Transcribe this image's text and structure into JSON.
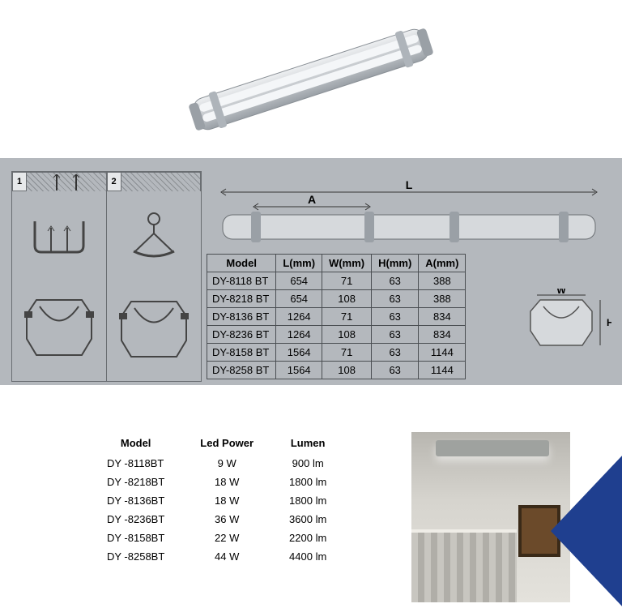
{
  "colors": {
    "panel_bg": "#b4b8bd",
    "border": "#6a6e72",
    "accent_blue": "#1f3f8f"
  },
  "mounting": {
    "step1": "1",
    "step2": "2"
  },
  "dim_table": {
    "headers": [
      "Model",
      "L(mm)",
      "W(mm)",
      "H(mm)",
      "A(mm)"
    ],
    "rows": [
      [
        "DY-8118 BT",
        "654",
        "71",
        "63",
        "388"
      ],
      [
        "DY-8218 BT",
        "654",
        "108",
        "63",
        "388"
      ],
      [
        "DY-8136 BT",
        "1264",
        "71",
        "63",
        "834"
      ],
      [
        "DY-8236 BT",
        "1264",
        "108",
        "63",
        "834"
      ],
      [
        "DY-8158 BT",
        "1564",
        "71",
        "63",
        "1144"
      ],
      [
        "DY-8258 BT",
        "1564",
        "108",
        "63",
        "1144"
      ]
    ],
    "dim_labels": {
      "L": "L",
      "A": "A",
      "W": "W",
      "H": "H"
    }
  },
  "power_table": {
    "headers": [
      "Model",
      "Led Power",
      "Lumen"
    ],
    "rows": [
      [
        "DY -8118BT",
        "9 W",
        "900 lm"
      ],
      [
        "DY -8218BT",
        "18 W",
        "1800 lm"
      ],
      [
        "DY -8136BT",
        "18 W",
        "1800 lm"
      ],
      [
        "DY -8236BT",
        "36 W",
        "3600 lm"
      ],
      [
        "DY -8158BT",
        "22 W",
        "2200 lm"
      ],
      [
        "DY -8258BT",
        "44 W",
        "4400 lm"
      ]
    ]
  }
}
